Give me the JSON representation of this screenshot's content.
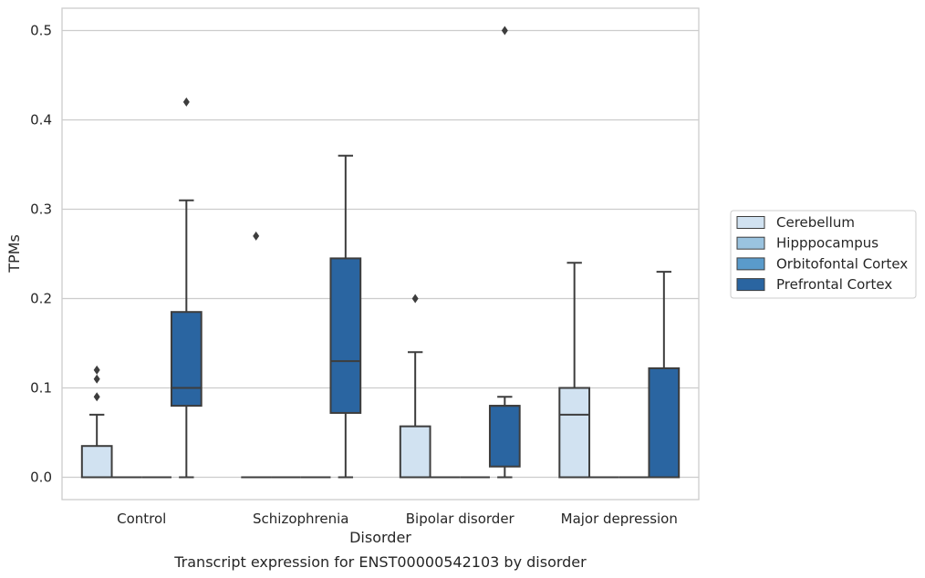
{
  "chart_data": {
    "type": "box",
    "title": "",
    "caption": "Transcript expression for ENST00000542103 by disorder",
    "xlabel": "Disorder",
    "ylabel": "TPMs",
    "ylim": [
      -0.025,
      0.525
    ],
    "yticks": [
      0.0,
      0.1,
      0.2,
      0.3,
      0.4,
      0.5
    ],
    "ytick_labels": [
      "0.0",
      "0.1",
      "0.2",
      "0.3",
      "0.4",
      "0.5"
    ],
    "categories": [
      "Control",
      "Schizophrenia",
      "Bipolar disorder",
      "Major depression"
    ],
    "grid": "horizontal",
    "legend_position": "right",
    "series": [
      {
        "name": "Cerebellum",
        "color": "#d1e2f1",
        "boxes": [
          {
            "q1": 0.0,
            "median": 0.0,
            "q3": 0.035,
            "whisker_low": 0.0,
            "whisker_high": 0.07,
            "outliers": [
              0.09,
              0.11,
              0.12
            ]
          },
          {
            "q1": 0.0,
            "median": 0.0,
            "q3": 0.0,
            "whisker_low": 0.0,
            "whisker_high": 0.0,
            "outliers": [
              0.27
            ]
          },
          {
            "q1": 0.0,
            "median": 0.0,
            "q3": 0.057,
            "whisker_low": 0.0,
            "whisker_high": 0.14,
            "outliers": [
              0.2
            ]
          },
          {
            "q1": 0.0,
            "median": 0.07,
            "q3": 0.1,
            "whisker_low": 0.0,
            "whisker_high": 0.24,
            "outliers": []
          }
        ]
      },
      {
        "name": "Hipppocampus",
        "color": "#9ac3df",
        "boxes": [
          {
            "q1": 0.0,
            "median": 0.0,
            "q3": 0.0,
            "whisker_low": 0.0,
            "whisker_high": 0.0,
            "outliers": []
          },
          {
            "q1": 0.0,
            "median": 0.0,
            "q3": 0.0,
            "whisker_low": 0.0,
            "whisker_high": 0.0,
            "outliers": []
          },
          {
            "q1": 0.0,
            "median": 0.0,
            "q3": 0.0,
            "whisker_low": 0.0,
            "whisker_high": 0.0,
            "outliers": []
          },
          {
            "q1": 0.0,
            "median": 0.0,
            "q3": 0.0,
            "whisker_low": 0.0,
            "whisker_high": 0.0,
            "outliers": []
          }
        ]
      },
      {
        "name": "Orbitofontal Cortex",
        "color": "#5a9bcb",
        "boxes": [
          {
            "q1": 0.0,
            "median": 0.0,
            "q3": 0.0,
            "whisker_low": 0.0,
            "whisker_high": 0.0,
            "outliers": []
          },
          {
            "q1": 0.0,
            "median": 0.0,
            "q3": 0.0,
            "whisker_low": 0.0,
            "whisker_high": 0.0,
            "outliers": []
          },
          {
            "q1": 0.0,
            "median": 0.0,
            "q3": 0.0,
            "whisker_low": 0.0,
            "whisker_high": 0.0,
            "outliers": []
          },
          {
            "q1": 0.0,
            "median": 0.0,
            "q3": 0.0,
            "whisker_low": 0.0,
            "whisker_high": 0.0,
            "outliers": []
          }
        ]
      },
      {
        "name": "Prefrontal Cortex",
        "color": "#2a65a1",
        "boxes": [
          {
            "q1": 0.08,
            "median": 0.1,
            "q3": 0.185,
            "whisker_low": 0.0,
            "whisker_high": 0.31,
            "outliers": [
              0.42
            ]
          },
          {
            "q1": 0.072,
            "median": 0.13,
            "q3": 0.245,
            "whisker_low": 0.0,
            "whisker_high": 0.36,
            "outliers": []
          },
          {
            "q1": 0.012,
            "median": 0.08,
            "q3": 0.08,
            "whisker_low": 0.0,
            "whisker_high": 0.09,
            "outliers": [
              0.5
            ]
          },
          {
            "q1": 0.0,
            "median": 0.0,
            "q3": 0.122,
            "whisker_low": 0.0,
            "whisker_high": 0.23,
            "outliers": []
          }
        ]
      }
    ]
  }
}
